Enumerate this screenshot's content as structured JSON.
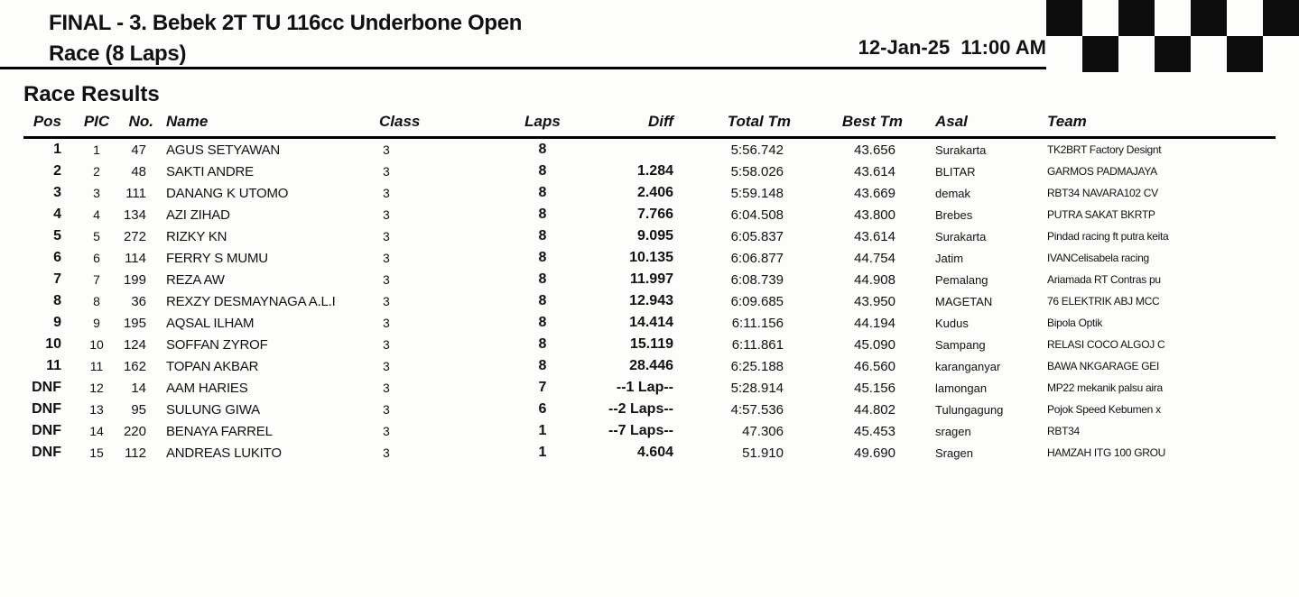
{
  "header": {
    "title": "FINAL - 3. Bebek 2T TU 116cc Underbone Open",
    "subtitle": "Race (8 Laps)",
    "date": "12-Jan-25",
    "time": "11:00 AM"
  },
  "section_title": "Race Results",
  "table": {
    "columns": [
      "Pos",
      "PIC",
      "No.",
      "Name",
      "Class",
      "Laps",
      "Diff",
      "Total Tm",
      "Best Tm",
      "Asal",
      "Team"
    ],
    "col_widths": [
      "60px",
      "42px",
      "52px",
      "236px",
      "130px",
      "110px",
      "130px",
      "130px",
      "110px",
      "130px",
      "auto"
    ],
    "rows": [
      {
        "pos": "1",
        "pic": "1",
        "no": "47",
        "name": "AGUS SETYAWAN",
        "class": "3",
        "laps": "8",
        "diff": "",
        "totaltm": "5:56.742",
        "besttm": "43.656",
        "asal": "Surakarta",
        "team": "TK2BRT Factory Designt"
      },
      {
        "pos": "2",
        "pic": "2",
        "no": "48",
        "name": "SAKTI ANDRE",
        "class": "3",
        "laps": "8",
        "diff": "1.284",
        "totaltm": "5:58.026",
        "besttm": "43.614",
        "asal": "BLITAR",
        "team": "GARMOS PADMAJAYA"
      },
      {
        "pos": "3",
        "pic": "3",
        "no": "111",
        "name": "DANANG K UTOMO",
        "class": "3",
        "laps": "8",
        "diff": "2.406",
        "totaltm": "5:59.148",
        "besttm": "43.669",
        "asal": "demak",
        "team": "RBT34 NAVARA102 CV"
      },
      {
        "pos": "4",
        "pic": "4",
        "no": "134",
        "name": "AZI ZIHAD",
        "class": "3",
        "laps": "8",
        "diff": "7.766",
        "totaltm": "6:04.508",
        "besttm": "43.800",
        "asal": "Brebes",
        "team": "PUTRA SAKAT BKRTP"
      },
      {
        "pos": "5",
        "pic": "5",
        "no": "272",
        "name": "RIZKY KN",
        "class": "3",
        "laps": "8",
        "diff": "9.095",
        "totaltm": "6:05.837",
        "besttm": "43.614",
        "asal": "Surakarta",
        "team": "Pindad racing ft putra keita"
      },
      {
        "pos": "6",
        "pic": "6",
        "no": "114",
        "name": "FERRY S MUMU",
        "class": "3",
        "laps": "8",
        "diff": "10.135",
        "totaltm": "6:06.877",
        "besttm": "44.754",
        "asal": "Jatim",
        "team": "IVANCelisabela racing"
      },
      {
        "pos": "7",
        "pic": "7",
        "no": "199",
        "name": "REZA AW",
        "class": "3",
        "laps": "8",
        "diff": "11.997",
        "totaltm": "6:08.739",
        "besttm": "44.908",
        "asal": "Pemalang",
        "team": "Ariamada RT Contras pu"
      },
      {
        "pos": "8",
        "pic": "8",
        "no": "36",
        "name": "REXZY DESMAYNAGA A.L.I",
        "class": "3",
        "laps": "8",
        "diff": "12.943",
        "totaltm": "6:09.685",
        "besttm": "43.950",
        "asal": "MAGETAN",
        "team": "76 ELEKTRIK ABJ MCC"
      },
      {
        "pos": "9",
        "pic": "9",
        "no": "195",
        "name": "AQSAL ILHAM",
        "class": "3",
        "laps": "8",
        "diff": "14.414",
        "totaltm": "6:11.156",
        "besttm": "44.194",
        "asal": "Kudus",
        "team": "Bipola Optik"
      },
      {
        "pos": "10",
        "pic": "10",
        "no": "124",
        "name": "SOFFAN ZYROF",
        "class": "3",
        "laps": "8",
        "diff": "15.119",
        "totaltm": "6:11.861",
        "besttm": "45.090",
        "asal": "Sampang",
        "team": "RELASI COCO ALGOJ C"
      },
      {
        "pos": "11",
        "pic": "11",
        "no": "162",
        "name": "TOPAN AKBAR",
        "class": "3",
        "laps": "8",
        "diff": "28.446",
        "totaltm": "6:25.188",
        "besttm": "46.560",
        "asal": "karanganyar",
        "team": "BAWA NKGARAGE GEI"
      },
      {
        "pos": "DNF",
        "pic": "12",
        "no": "14",
        "name": "AAM HARIES",
        "class": "3",
        "laps": "7",
        "diff": "--1 Lap--",
        "totaltm": "5:28.914",
        "besttm": "45.156",
        "asal": "lamongan",
        "team": "MP22 mekanik palsu aira"
      },
      {
        "pos": "DNF",
        "pic": "13",
        "no": "95",
        "name": "SULUNG GIWA",
        "class": "3",
        "laps": "6",
        "diff": "--2 Laps--",
        "totaltm": "4:57.536",
        "besttm": "44.802",
        "asal": "Tulungagung",
        "team": "Pojok Speed Kebumen x"
      },
      {
        "pos": "DNF",
        "pic": "14",
        "no": "220",
        "name": "BENAYA FARREL",
        "class": "3",
        "laps": "1",
        "diff": "--7 Laps--",
        "totaltm": "47.306",
        "besttm": "45.453",
        "asal": "sragen",
        "team": "RBT34"
      },
      {
        "pos": "DNF",
        "pic": "15",
        "no": "112",
        "name": "ANDREAS LUKITO",
        "class": "3",
        "laps": "1",
        "diff": "4.604",
        "totaltm": "51.910",
        "besttm": "49.690",
        "asal": "Sragen",
        "team": "HAMZAH ITG 100 GROU"
      }
    ]
  },
  "colors": {
    "background": "#fdfdfb",
    "text": "#111111",
    "border": "#000000"
  }
}
